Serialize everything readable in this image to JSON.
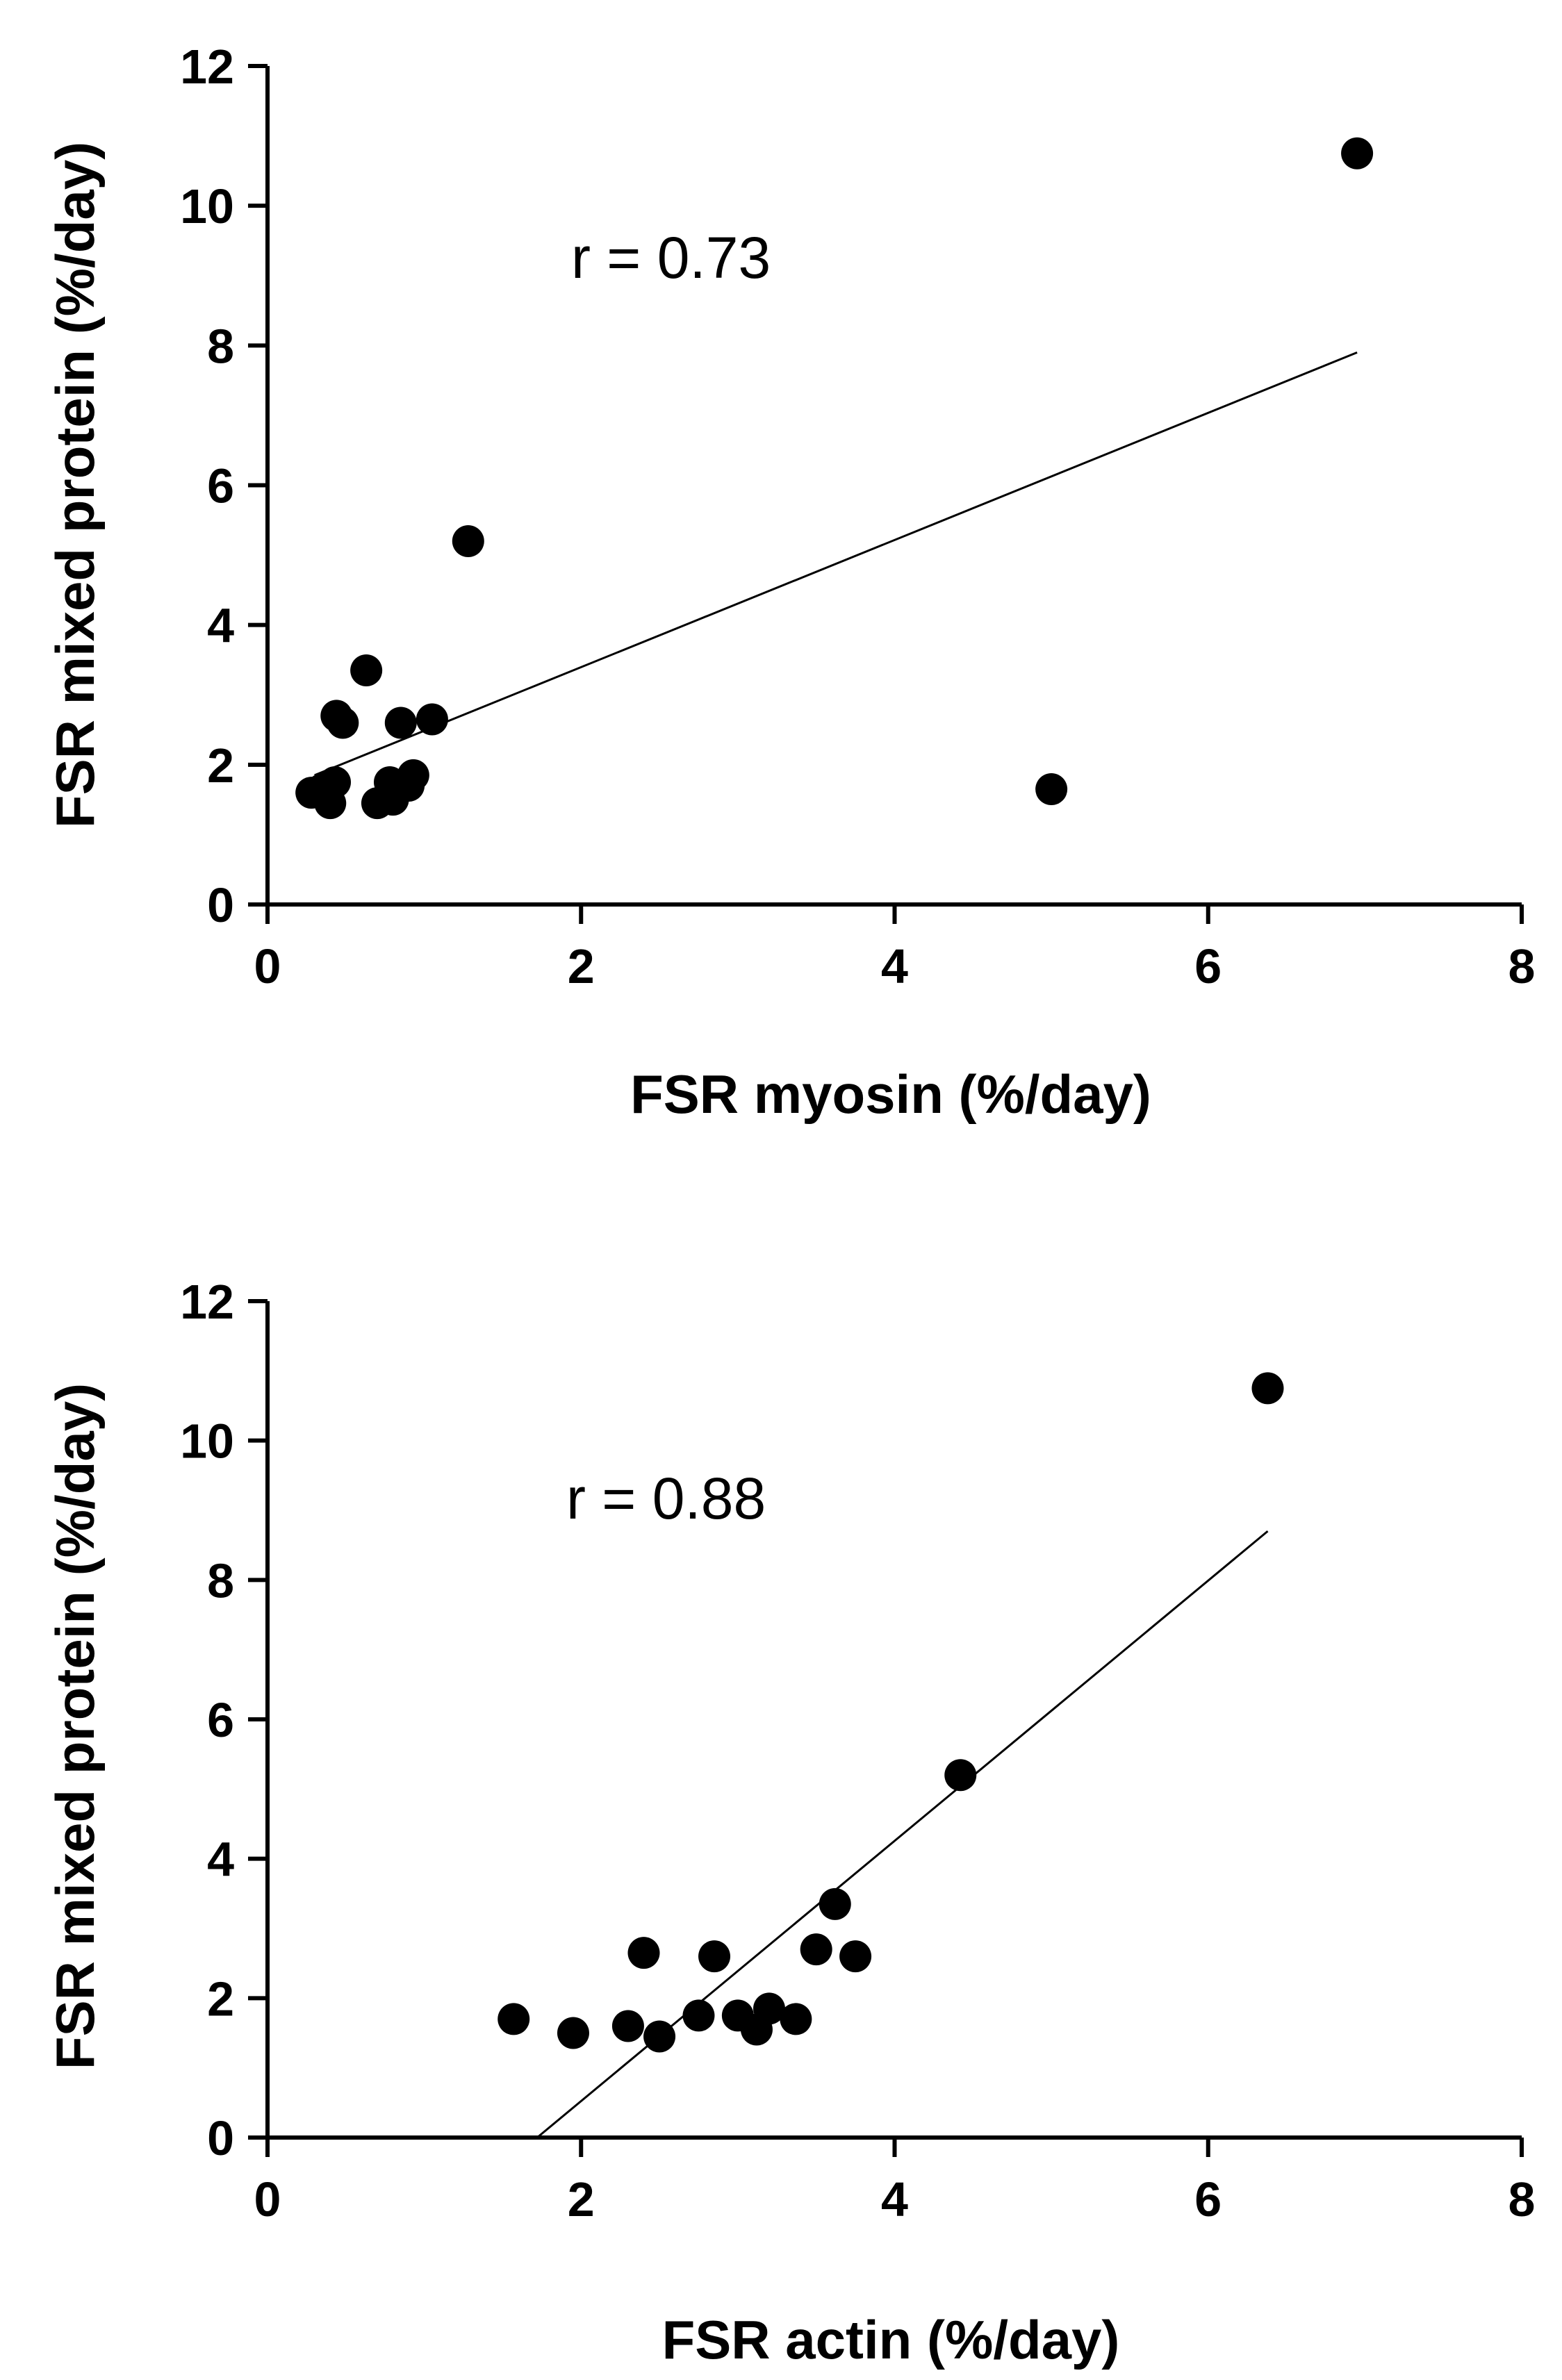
{
  "chart_data": [
    {
      "type": "scatter",
      "xlabel": "FSR myosin (%/day)",
      "ylabel": "FSR mixed protein (%/day)",
      "xlim": [
        0,
        8
      ],
      "ylim": [
        0,
        12
      ],
      "xticks": [
        "0",
        "2",
        "4",
        "6",
        "8"
      ],
      "yticks": [
        "0",
        "2",
        "4",
        "6",
        "8",
        "10",
        "12"
      ],
      "annotation": "r = 0.73",
      "points": [
        {
          "x": 0.28,
          "y": 1.6
        },
        {
          "x": 0.35,
          "y": 1.65
        },
        {
          "x": 0.4,
          "y": 1.45
        },
        {
          "x": 0.43,
          "y": 1.75
        },
        {
          "x": 0.44,
          "y": 2.7
        },
        {
          "x": 0.48,
          "y": 2.6
        },
        {
          "x": 0.63,
          "y": 3.35
        },
        {
          "x": 0.7,
          "y": 1.45
        },
        {
          "x": 0.78,
          "y": 1.75
        },
        {
          "x": 0.8,
          "y": 1.5
        },
        {
          "x": 0.85,
          "y": 2.6
        },
        {
          "x": 0.9,
          "y": 1.7
        },
        {
          "x": 0.93,
          "y": 1.85
        },
        {
          "x": 1.05,
          "y": 2.65
        },
        {
          "x": 1.28,
          "y": 5.2
        },
        {
          "x": 5.0,
          "y": 1.65
        },
        {
          "x": 6.95,
          "y": 10.75
        }
      ],
      "fit_line": {
        "x": [
          0.3,
          6.95
        ],
        "y": [
          1.85,
          7.9
        ]
      },
      "colors": {
        "points": "#000000",
        "line": "#000000"
      }
    },
    {
      "type": "scatter",
      "xlabel": "FSR actin (%/day)",
      "ylabel": "FSR mixed protein (%/day)",
      "xlim": [
        0,
        8
      ],
      "ylim": [
        0,
        12
      ],
      "xticks": [
        "0",
        "2",
        "4",
        "6",
        "8"
      ],
      "yticks": [
        "0",
        "2",
        "4",
        "6",
        "8",
        "10",
        "12"
      ],
      "annotation": "r = 0.88",
      "points": [
        {
          "x": 1.57,
          "y": 1.7
        },
        {
          "x": 1.95,
          "y": 1.5
        },
        {
          "x": 2.3,
          "y": 1.6
        },
        {
          "x": 2.4,
          "y": 2.65
        },
        {
          "x": 2.5,
          "y": 1.45
        },
        {
          "x": 2.75,
          "y": 1.75
        },
        {
          "x": 2.85,
          "y": 2.6
        },
        {
          "x": 3.0,
          "y": 1.75
        },
        {
          "x": 3.12,
          "y": 1.55
        },
        {
          "x": 3.2,
          "y": 1.85
        },
        {
          "x": 3.37,
          "y": 1.7
        },
        {
          "x": 3.5,
          "y": 2.7
        },
        {
          "x": 3.62,
          "y": 3.35
        },
        {
          "x": 3.75,
          "y": 2.6
        },
        {
          "x": 4.42,
          "y": 5.2
        },
        {
          "x": 6.38,
          "y": 10.75
        }
      ],
      "fit_line": {
        "x": [
          1.72,
          6.38
        ],
        "y": [
          0.0,
          8.7
        ]
      },
      "colors": {
        "points": "#000000",
        "line": "#000000"
      }
    }
  ]
}
